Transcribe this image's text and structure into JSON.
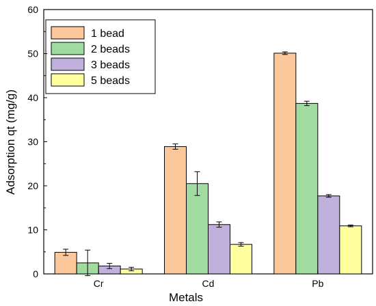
{
  "chart_data": {
    "type": "bar",
    "title": "",
    "xlabel": "Metals",
    "ylabel": "Adsorption qt (mg/g)",
    "ylim": [
      0,
      60
    ],
    "yticks": [
      0,
      10,
      20,
      30,
      40,
      50,
      60
    ],
    "categories": [
      "Cr",
      "Cd",
      "Pb"
    ],
    "series": [
      {
        "name": "1 bead",
        "color": "#fcc79b",
        "values": [
          4.9,
          28.9,
          50.1
        ],
        "errors": [
          0.7,
          0.6,
          0.3
        ]
      },
      {
        "name": "2 beads",
        "color": "#a0dca0",
        "values": [
          2.5,
          20.5,
          38.7
        ],
        "errors": [
          2.9,
          2.7,
          0.5
        ]
      },
      {
        "name": "3 beads",
        "color": "#c0b0dc",
        "values": [
          1.8,
          11.2,
          17.7
        ],
        "errors": [
          0.6,
          0.6,
          0.3
        ]
      },
      {
        "name": "5 beads",
        "color": "#ffffa0",
        "values": [
          1.1,
          6.7,
          10.9
        ],
        "errors": [
          0.4,
          0.4,
          0.2
        ]
      }
    ],
    "legend_position": "top-left",
    "grid": false
  }
}
